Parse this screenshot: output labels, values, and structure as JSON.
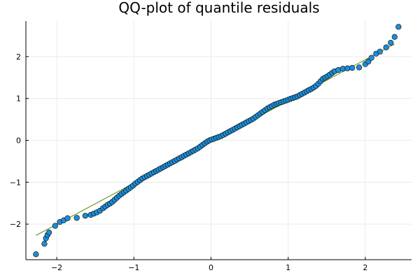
{
  "chart_data": {
    "type": "scatter",
    "title": "QQ-plot of quantile residuals",
    "xlabel": "",
    "ylabel": "",
    "xlim": [
      -2.4,
      2.6
    ],
    "ylim": [
      -2.85,
      2.85
    ],
    "xticks": [
      -2,
      -1,
      0,
      1,
      2
    ],
    "yticks": [
      -2,
      -1,
      0,
      1,
      2
    ],
    "xtick_labels": [
      "−2",
      "−1",
      "0",
      "1",
      "2"
    ],
    "ytick_labels": [
      "−2",
      "−1",
      "0",
      "1",
      "2"
    ],
    "grid": true,
    "legend": "none",
    "reference_line": {
      "x": [
        -2.27,
        2.38
      ],
      "y": [
        -2.27,
        2.3
      ],
      "color": "#6e9b2f"
    },
    "series": [
      {
        "color": "#1f8dd6",
        "points": [
          [
            -2.27,
            -2.72
          ],
          [
            -2.16,
            -2.47
          ],
          [
            -2.14,
            -2.34
          ],
          [
            -2.12,
            -2.26
          ],
          [
            -2.1,
            -2.2
          ],
          [
            -2.02,
            -2.04
          ],
          [
            -1.96,
            -1.95
          ],
          [
            -1.91,
            -1.91
          ],
          [
            -1.86,
            -1.86
          ],
          [
            -1.74,
            -1.85
          ],
          [
            -1.63,
            -1.8
          ],
          [
            -1.56,
            -1.78
          ],
          [
            -1.52,
            -1.75
          ],
          [
            -1.48,
            -1.72
          ],
          [
            -1.44,
            -1.68
          ],
          [
            -1.4,
            -1.62
          ],
          [
            -1.37,
            -1.58
          ],
          [
            -1.34,
            -1.54
          ],
          [
            -1.31,
            -1.51
          ],
          [
            -1.28,
            -1.47
          ],
          [
            -1.25,
            -1.42
          ],
          [
            -1.22,
            -1.37
          ],
          [
            -1.19,
            -1.32
          ],
          [
            -1.16,
            -1.28
          ],
          [
            -1.13,
            -1.24
          ],
          [
            -1.1,
            -1.2
          ],
          [
            -1.07,
            -1.16
          ],
          [
            -1.04,
            -1.12
          ],
          [
            -1.01,
            -1.08
          ],
          [
            -0.98,
            -1.03
          ],
          [
            -0.95,
            -0.99
          ],
          [
            -0.92,
            -0.95
          ],
          [
            -0.89,
            -0.91
          ],
          [
            -0.86,
            -0.88
          ],
          [
            -0.83,
            -0.85
          ],
          [
            -0.8,
            -0.82
          ],
          [
            -0.77,
            -0.79
          ],
          [
            -0.74,
            -0.76
          ],
          [
            -0.71,
            -0.73
          ],
          [
            -0.68,
            -0.7
          ],
          [
            -0.65,
            -0.67
          ],
          [
            -0.62,
            -0.64
          ],
          [
            -0.59,
            -0.61
          ],
          [
            -0.56,
            -0.58
          ],
          [
            -0.53,
            -0.55
          ],
          [
            -0.5,
            -0.52
          ],
          [
            -0.47,
            -0.49
          ],
          [
            -0.44,
            -0.46
          ],
          [
            -0.41,
            -0.43
          ],
          [
            -0.38,
            -0.4
          ],
          [
            -0.35,
            -0.37
          ],
          [
            -0.32,
            -0.34
          ],
          [
            -0.29,
            -0.31
          ],
          [
            -0.26,
            -0.28
          ],
          [
            -0.23,
            -0.25
          ],
          [
            -0.2,
            -0.22
          ],
          [
            -0.17,
            -0.19
          ],
          [
            -0.14,
            -0.15
          ],
          [
            -0.11,
            -0.11
          ],
          [
            -0.08,
            -0.07
          ],
          [
            -0.05,
            -0.03
          ],
          [
            -0.02,
            0.0
          ],
          [
            0.01,
            0.02
          ],
          [
            0.04,
            0.04
          ],
          [
            0.07,
            0.06
          ],
          [
            0.1,
            0.08
          ],
          [
            0.13,
            0.1
          ],
          [
            0.16,
            0.13
          ],
          [
            0.19,
            0.16
          ],
          [
            0.22,
            0.19
          ],
          [
            0.25,
            0.22
          ],
          [
            0.28,
            0.25
          ],
          [
            0.31,
            0.28
          ],
          [
            0.34,
            0.31
          ],
          [
            0.37,
            0.34
          ],
          [
            0.4,
            0.37
          ],
          [
            0.43,
            0.4
          ],
          [
            0.46,
            0.43
          ],
          [
            0.49,
            0.46
          ],
          [
            0.52,
            0.49
          ],
          [
            0.55,
            0.52
          ],
          [
            0.58,
            0.56
          ],
          [
            0.61,
            0.6
          ],
          [
            0.64,
            0.64
          ],
          [
            0.67,
            0.68
          ],
          [
            0.7,
            0.72
          ],
          [
            0.73,
            0.76
          ],
          [
            0.76,
            0.79
          ],
          [
            0.79,
            0.82
          ],
          [
            0.82,
            0.85
          ],
          [
            0.85,
            0.87
          ],
          [
            0.88,
            0.89
          ],
          [
            0.91,
            0.91
          ],
          [
            0.94,
            0.93
          ],
          [
            0.97,
            0.95
          ],
          [
            1.0,
            0.97
          ],
          [
            1.03,
            0.99
          ],
          [
            1.06,
            1.01
          ],
          [
            1.09,
            1.03
          ],
          [
            1.12,
            1.05
          ],
          [
            1.15,
            1.08
          ],
          [
            1.18,
            1.11
          ],
          [
            1.21,
            1.14
          ],
          [
            1.24,
            1.17
          ],
          [
            1.27,
            1.2
          ],
          [
            1.3,
            1.23
          ],
          [
            1.33,
            1.26
          ],
          [
            1.36,
            1.3
          ],
          [
            1.39,
            1.35
          ],
          [
            1.42,
            1.41
          ],
          [
            1.45,
            1.47
          ],
          [
            1.48,
            1.5
          ],
          [
            1.51,
            1.53
          ],
          [
            1.54,
            1.57
          ],
          [
            1.57,
            1.61
          ],
          [
            1.6,
            1.65
          ],
          [
            1.65,
            1.68
          ],
          [
            1.71,
            1.71
          ],
          [
            1.77,
            1.72
          ],
          [
            1.83,
            1.73
          ],
          [
            1.92,
            1.74
          ],
          [
            2.0,
            1.82
          ],
          [
            2.04,
            1.88
          ],
          [
            2.08,
            1.97
          ],
          [
            2.14,
            2.07
          ],
          [
            2.19,
            2.12
          ],
          [
            2.27,
            2.22
          ],
          [
            2.33,
            2.33
          ],
          [
            2.38,
            2.47
          ],
          [
            2.43,
            2.71
          ]
        ]
      }
    ]
  }
}
